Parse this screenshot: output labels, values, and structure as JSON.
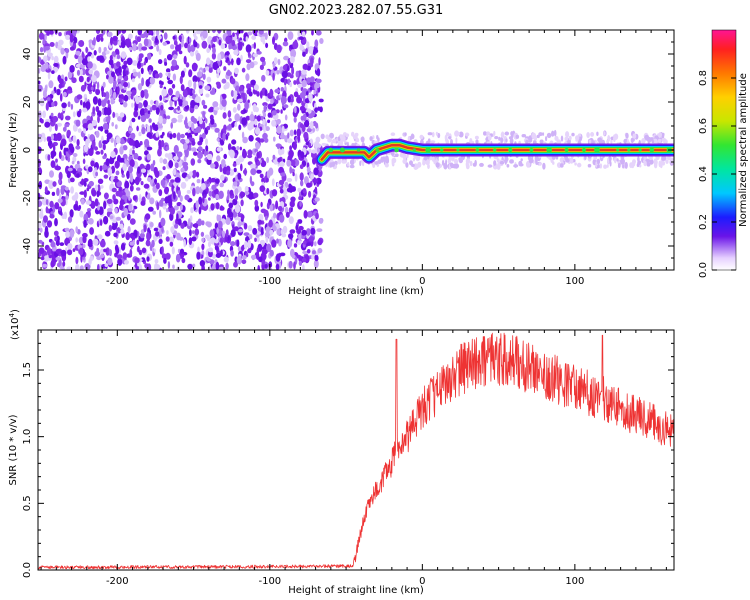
{
  "title": "GN02.2023.282.07.55.G31",
  "colors": {
    "snr_line": "#ee3333",
    "track_core": "#e23a22",
    "noise": "#7a1ee6"
  },
  "chart_data": [
    {
      "type": "heatmap",
      "xlabel": "Height of straight line (km)",
      "ylabel": "Frequency (Hz)",
      "xlim": [
        -252,
        165
      ],
      "ylim": [
        -50,
        50
      ],
      "xticks": [
        -200,
        -100,
        0,
        100
      ],
      "yticks": [
        40,
        20,
        0,
        -20,
        -40
      ],
      "noise_region_x": [
        -252,
        -66
      ],
      "track": {
        "x": [
          -66,
          -62,
          -55,
          -48,
          -42,
          -38,
          -35,
          -30,
          -25,
          -20,
          -15,
          -10,
          0,
          20,
          40,
          60,
          80,
          100,
          120,
          140,
          165
        ],
        "y": [
          -4,
          -1,
          -1,
          -1,
          -1,
          -1,
          -3,
          0,
          1,
          2,
          2,
          1,
          0,
          0,
          0,
          0,
          0,
          0,
          0,
          0,
          0
        ]
      },
      "colorbar": {
        "label": "Normalized spectral amplitude",
        "ticks": [
          "0.0",
          "0.2",
          "0.4",
          "0.6",
          "0.8"
        ],
        "tick_values": [
          0.0,
          0.2,
          0.4,
          0.6,
          0.8
        ],
        "range": [
          0,
          1
        ]
      }
    },
    {
      "type": "line",
      "xlabel": "Height of straight line (km)",
      "ylabel": "SNR (10 * v/v)",
      "ylabel_scale": "(x10",
      "ylabel_scale_exp": "4",
      "ylabel_scale_close": ")",
      "xlim": [
        -252,
        165
      ],
      "ylim": [
        0,
        18000
      ],
      "xticks": [
        -200,
        -100,
        0,
        100
      ],
      "yticks": [
        "0.0",
        "0.5",
        "1.0",
        "1.5"
      ],
      "ytick_values": [
        0,
        5000,
        10000,
        15000
      ],
      "series": [
        {
          "x": [
            -252,
            -100,
            -45,
            -42,
            -38,
            -35,
            -30,
            -25,
            -20,
            -18,
            -15,
            -10,
            -5,
            0,
            5,
            10,
            15,
            20,
            25,
            30,
            40,
            50,
            60,
            70,
            80,
            90,
            100,
            110,
            120,
            130,
            140,
            150,
            160,
            165
          ],
          "y": [
            200,
            250,
            300,
            2000,
            4000,
            5000,
            6000,
            7000,
            8000,
            9000,
            9000,
            10000,
            11000,
            12000,
            12800,
            13400,
            14000,
            14600,
            15000,
            15300,
            15700,
            15800,
            15600,
            15200,
            14800,
            14200,
            13700,
            13200,
            12800,
            12200,
            11600,
            11100,
            10600,
            10300
          ],
          "spikes": [
            [
              -17,
              17300
            ],
            [
              40,
              17500
            ],
            [
              118,
              17600
            ]
          ]
        }
      ]
    }
  ]
}
